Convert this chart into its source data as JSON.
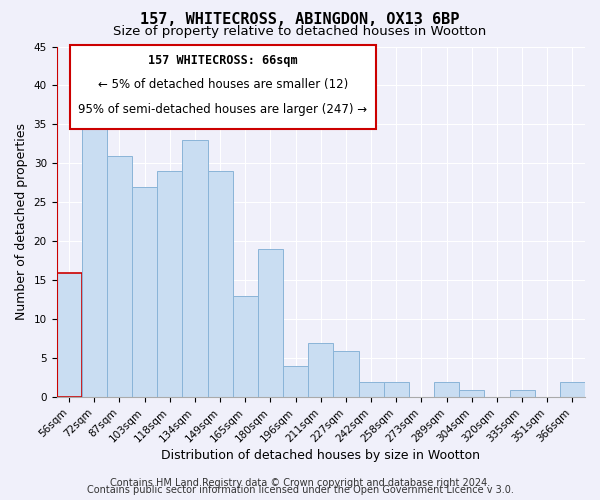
{
  "title": "157, WHITECROSS, ABINGDON, OX13 6BP",
  "subtitle": "Size of property relative to detached houses in Wootton",
  "xlabel": "Distribution of detached houses by size in Wootton",
  "ylabel": "Number of detached properties",
  "footer_line1": "Contains HM Land Registry data © Crown copyright and database right 2024.",
  "footer_line2": "Contains public sector information licensed under the Open Government Licence v 3.0.",
  "bins": [
    "56sqm",
    "72sqm",
    "87sqm",
    "103sqm",
    "118sqm",
    "134sqm",
    "149sqm",
    "165sqm",
    "180sqm",
    "196sqm",
    "211sqm",
    "227sqm",
    "242sqm",
    "258sqm",
    "273sqm",
    "289sqm",
    "304sqm",
    "320sqm",
    "335sqm",
    "351sqm",
    "366sqm"
  ],
  "values": [
    16,
    36,
    31,
    27,
    29,
    33,
    29,
    13,
    19,
    4,
    7,
    6,
    2,
    2,
    0,
    2,
    1,
    0,
    1,
    0,
    2
  ],
  "bar_color": "#c9ddf2",
  "bar_edge_color": "#8ab4d8",
  "highlight_bar_edge_color": "#cc0000",
  "annotation_line1": "157 WHITECROSS: 66sqm",
  "annotation_line2": "← 5% of detached houses are smaller (12)",
  "annotation_line3": "95% of semi-detached houses are larger (247) →",
  "ylim": [
    0,
    45
  ],
  "yticks": [
    0,
    5,
    10,
    15,
    20,
    25,
    30,
    35,
    40,
    45
  ],
  "background_color": "#f0f0fa",
  "grid_color": "#ffffff",
  "title_fontsize": 11,
  "subtitle_fontsize": 9.5,
  "axis_label_fontsize": 9,
  "tick_fontsize": 7.5,
  "annotation_fontsize": 8.5,
  "footer_fontsize": 7
}
